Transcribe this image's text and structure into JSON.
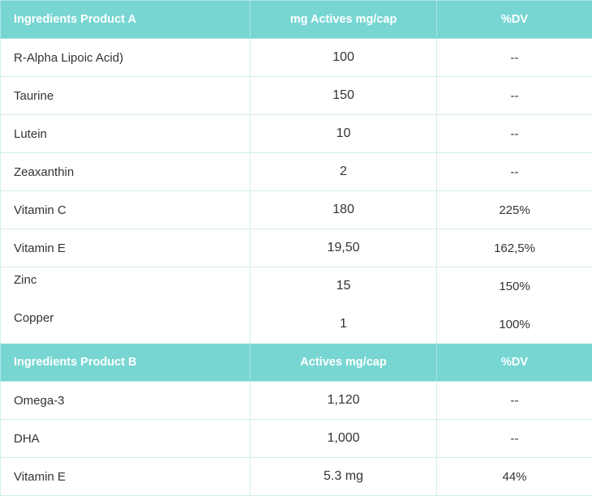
{
  "tables": [
    {
      "headers": [
        "Ingredients Product A",
        "mg Actives mg/cap",
        "%DV"
      ],
      "rows": [
        [
          "R-Alpha Lipoic Acid)",
          "100",
          "--"
        ],
        [
          "Taurine",
          "150",
          "--"
        ],
        [
          "Lutein",
          "10",
          "--"
        ],
        [
          "Zeaxanthin",
          "2",
          "--"
        ],
        [
          "Vitamin C",
          "180",
          "225%"
        ],
        [
          "Vitamin E",
          "19,50",
          "162,5%"
        ],
        [
          "Zinc",
          "15",
          "150%"
        ],
        [
          "Copper",
          "1",
          "100%"
        ]
      ]
    },
    {
      "headers": [
        "Ingredients Product B",
        "Actives mg/cap",
        "%DV"
      ],
      "rows": [
        [
          "Omega-3",
          "1,120",
          "--"
        ],
        [
          "DHA",
          "1,000",
          "--"
        ],
        [
          "Vitamin E",
          "5.3 mg",
          "44%"
        ]
      ]
    }
  ],
  "colors": {
    "header_bg": "#78d6d2",
    "header_text": "#ffffff",
    "border": "#d3eeee"
  }
}
